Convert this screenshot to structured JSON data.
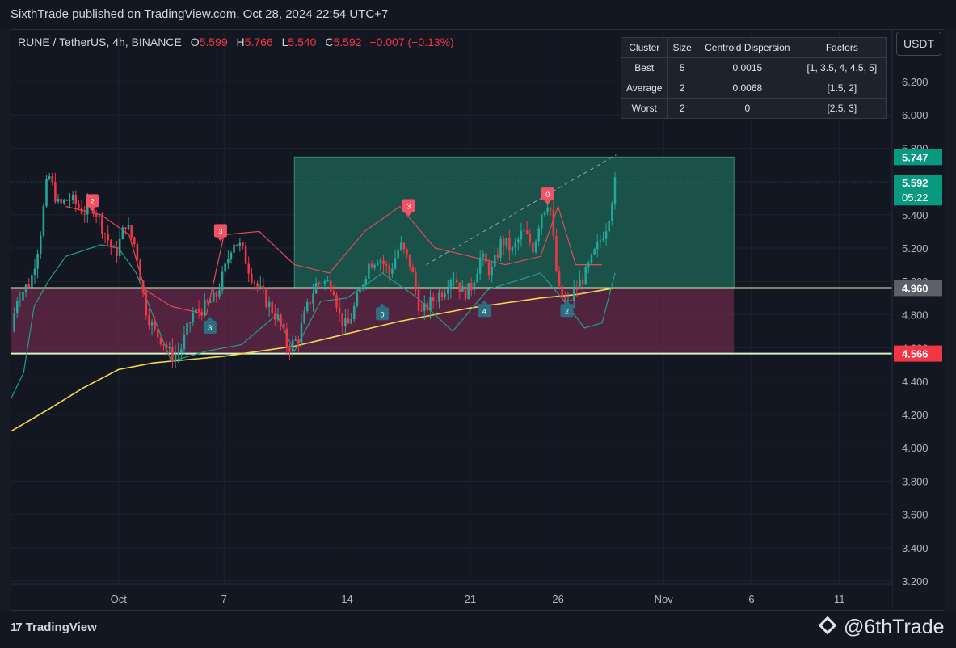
{
  "header": {
    "publish_text": "SixthTrade published on TradingView.com, Oct 28, 2024 22:54 UTC+7"
  },
  "symbol": {
    "name": "RUNE / TetherUS, 4h, BINANCE",
    "o_label": "O",
    "o": "5.599",
    "h_label": "H",
    "h": "5.766",
    "l_label": "L",
    "l": "5.540",
    "c_label": "C",
    "c": "5.592",
    "change": "−0.007 (−0.13%)"
  },
  "currency_button": "USDT",
  "cluster_table": {
    "headers": [
      "Cluster",
      "Size",
      "Centroid Dispersion",
      "Factors"
    ],
    "rows": [
      [
        "Best",
        "5",
        "0.0015",
        "[1, 3.5, 4, 4.5, 5]"
      ],
      [
        "Average",
        "2",
        "0.0068",
        "[1.5, 2]"
      ],
      [
        "Worst",
        "2",
        "0",
        "[2.5, 3]"
      ]
    ]
  },
  "footer": {
    "tradingview_label": "TradingView",
    "tradingview_mark": "17",
    "watermark": "@6thTrade"
  },
  "colors": {
    "up": "#26a69a",
    "down": "#f23645",
    "ema": "#f0d850",
    "level_line": "#d6f5c2",
    "target_zone": "#1e6b59",
    "risk_zone": "#6e2a4a",
    "price_tag": "#089981"
  },
  "chart_data": {
    "type": "candlestick",
    "symbol": "RUNE / TetherUS, 4h, BINANCE",
    "y_range": [
      3.2,
      6.3
    ],
    "y_ticks": [
      "6.200",
      "6.000",
      "5.800",
      "5.600",
      "5.400",
      "5.200",
      "5.000",
      "4.800",
      "4.600",
      "4.400",
      "4.200",
      "4.000",
      "3.800",
      "3.600",
      "3.400",
      "3.200"
    ],
    "x_ticks": [
      {
        "day": 9,
        "label": "Oct"
      },
      {
        "day": 15,
        "label": "7"
      },
      {
        "day": 22,
        "label": "14"
      },
      {
        "day": 29,
        "label": "21"
      },
      {
        "day": 34,
        "label": "26"
      },
      {
        "day": 40,
        "label": "Nov"
      },
      {
        "day": 45,
        "label": "6"
      },
      {
        "day": 50,
        "label": "11"
      }
    ],
    "x_axis_days": [
      2.9,
      53
    ],
    "last_candle_day": 37.24,
    "horizontal_levels": [
      {
        "price": 4.96,
        "label": "4.960",
        "tag_color": "#5d606b"
      },
      {
        "price": 4.566,
        "label": "4.566",
        "tag_color": "#f23645"
      }
    ],
    "price_tags": [
      {
        "price": 5.747,
        "label": "5.747",
        "tag_color": "#089981"
      },
      {
        "price": 5.592,
        "label": "5.592",
        "sub": "05:22",
        "tag_color": "#089981"
      }
    ],
    "zones": [
      {
        "kind": "target",
        "day_from": 19,
        "day_to": 44,
        "price_from": 4.96,
        "price_to": 5.747
      },
      {
        "kind": "risk",
        "day_from": 2.9,
        "day_to": 44,
        "price_from": 4.566,
        "price_to": 4.96
      }
    ],
    "close_path": [
      [
        2.9,
        4.7
      ],
      [
        3.2,
        4.9
      ],
      [
        4.0,
        5.0
      ],
      [
        4.5,
        5.25
      ],
      [
        5.0,
        5.65
      ],
      [
        5.6,
        5.45
      ],
      [
        6.2,
        5.5
      ],
      [
        7.0,
        5.42
      ],
      [
        7.6,
        5.45
      ],
      [
        8.2,
        5.3
      ],
      [
        8.8,
        5.15
      ],
      [
        9.4,
        5.35
      ],
      [
        10.0,
        5.2
      ],
      [
        10.5,
        4.85
      ],
      [
        11.0,
        4.7
      ],
      [
        11.5,
        4.65
      ],
      [
        12.0,
        4.55
      ],
      [
        12.5,
        4.58
      ],
      [
        13.2,
        4.8
      ],
      [
        14.0,
        4.85
      ],
      [
        14.5,
        4.9
      ],
      [
        15.0,
        5.05
      ],
      [
        15.5,
        5.25
      ],
      [
        16.0,
        5.2
      ],
      [
        16.5,
        5.05
      ],
      [
        17.0,
        4.95
      ],
      [
        17.6,
        4.85
      ],
      [
        18.2,
        4.75
      ],
      [
        18.6,
        4.6
      ],
      [
        19.2,
        4.65
      ],
      [
        19.6,
        4.8
      ],
      [
        20.2,
        4.98
      ],
      [
        20.6,
        5.0
      ],
      [
        21.2,
        4.98
      ],
      [
        21.6,
        4.78
      ],
      [
        22.0,
        4.72
      ],
      [
        22.6,
        4.9
      ],
      [
        23.2,
        5.1
      ],
      [
        23.8,
        5.15
      ],
      [
        24.4,
        5.05
      ],
      [
        25.0,
        5.22
      ],
      [
        25.6,
        5.1
      ],
      [
        26.2,
        4.8
      ],
      [
        26.8,
        4.88
      ],
      [
        27.5,
        4.95
      ],
      [
        28.0,
        5.05
      ],
      [
        28.6,
        4.93
      ],
      [
        29.0,
        4.95
      ],
      [
        29.6,
        5.15
      ],
      [
        30.2,
        5.05
      ],
      [
        30.8,
        5.25
      ],
      [
        31.4,
        5.18
      ],
      [
        32.0,
        5.3
      ],
      [
        32.6,
        5.2
      ],
      [
        33.0,
        5.4
      ],
      [
        33.5,
        5.5
      ],
      [
        34.0,
        4.95
      ],
      [
        34.5,
        4.85
      ],
      [
        35.0,
        4.95
      ],
      [
        35.6,
        5.05
      ],
      [
        36.2,
        5.2
      ],
      [
        36.8,
        5.35
      ],
      [
        37.24,
        5.592
      ]
    ],
    "ema_path": [
      [
        2.9,
        4.1
      ],
      [
        5,
        4.23
      ],
      [
        7,
        4.36
      ],
      [
        9,
        4.47
      ],
      [
        11,
        4.51
      ],
      [
        13,
        4.53
      ],
      [
        15,
        4.55
      ],
      [
        17,
        4.58
      ],
      [
        19,
        4.61
      ],
      [
        21,
        4.66
      ],
      [
        23,
        4.71
      ],
      [
        25,
        4.76
      ],
      [
        27,
        4.8
      ],
      [
        29,
        4.84
      ],
      [
        31,
        4.87
      ],
      [
        33,
        4.9
      ],
      [
        35,
        4.92
      ],
      [
        37.24,
        4.96
      ]
    ],
    "trailing_lower_path": [
      [
        2.9,
        4.3
      ],
      [
        3.6,
        4.45
      ],
      [
        4.2,
        4.85
      ],
      [
        5.0,
        5.0
      ],
      [
        6.0,
        5.15
      ],
      [
        8.0,
        5.22
      ],
      [
        9.0,
        5.2
      ],
      [
        10.0,
        5.05
      ],
      [
        12.0,
        4.52
      ],
      [
        14.0,
        4.58
      ],
      [
        16.0,
        4.62
      ],
      [
        18.0,
        4.8
      ],
      [
        19.0,
        4.58
      ],
      [
        20.5,
        4.88
      ],
      [
        22.0,
        4.9
      ],
      [
        24.0,
        5.05
      ],
      [
        26.0,
        4.9
      ],
      [
        28.0,
        4.7
      ],
      [
        30.0,
        4.95
      ],
      [
        33.0,
        5.05
      ],
      [
        34.2,
        4.9
      ],
      [
        35.5,
        4.72
      ],
      [
        36.5,
        4.75
      ],
      [
        37.24,
        5.05
      ]
    ],
    "trailing_upper_path": [
      [
        6.0,
        5.45
      ],
      [
        8.0,
        5.4
      ],
      [
        9.6,
        5.28
      ],
      [
        10.5,
        4.95
      ],
      [
        12.0,
        4.85
      ],
      [
        14.0,
        4.8
      ],
      [
        15.0,
        5.28
      ],
      [
        17.0,
        5.3
      ],
      [
        19.0,
        5.1
      ],
      [
        21.0,
        5.05
      ],
      [
        23.0,
        5.3
      ],
      [
        25.0,
        5.45
      ],
      [
        27.0,
        5.2
      ],
      [
        29.0,
        5.15
      ],
      [
        31.0,
        5.1
      ],
      [
        33.0,
        5.15
      ],
      [
        34.0,
        5.45
      ],
      [
        35.0,
        5.1
      ],
      [
        36.5,
        5.1
      ]
    ],
    "signals": [
      {
        "day": 7.5,
        "price": 5.48,
        "label": "2",
        "dir": "sell"
      },
      {
        "day": 14.8,
        "price": 5.3,
        "label": "3",
        "dir": "sell"
      },
      {
        "day": 14.2,
        "price": 4.72,
        "label": "3",
        "dir": "buy"
      },
      {
        "day": 24.0,
        "price": 4.8,
        "label": "0",
        "dir": "buy"
      },
      {
        "day": 25.5,
        "price": 5.45,
        "label": "3",
        "dir": "sell"
      },
      {
        "day": 29.8,
        "price": 4.82,
        "label": "4",
        "dir": "buy"
      },
      {
        "day": 33.4,
        "price": 5.52,
        "label": "0",
        "dir": "sell"
      },
      {
        "day": 34.5,
        "price": 4.82,
        "label": "2",
        "dir": "buy"
      }
    ]
  }
}
